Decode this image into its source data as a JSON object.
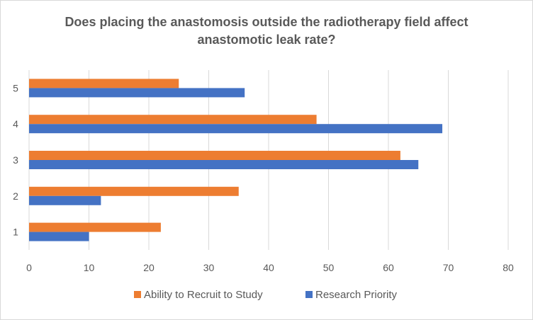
{
  "chart_data": {
    "type": "bar",
    "orientation": "horizontal",
    "title_line1": "Does placing the anastomosis outside the radiotherapy field affect",
    "title_line2": "anastomotic leak rate?",
    "categories": [
      "1",
      "2",
      "3",
      "4",
      "5"
    ],
    "series": [
      {
        "name": "Research Priority",
        "values": [
          10,
          12,
          65,
          69,
          36
        ],
        "color": "#4472C4"
      },
      {
        "name": "Ability to Recruit to Study",
        "values": [
          22,
          35,
          62,
          48,
          25
        ],
        "color": "#ED7D31"
      }
    ],
    "xlim": [
      0,
      80
    ],
    "x_ticks": [
      0,
      10,
      20,
      30,
      40,
      50,
      60,
      70,
      80
    ],
    "grid": "vertical",
    "legend_position": "bottom"
  }
}
